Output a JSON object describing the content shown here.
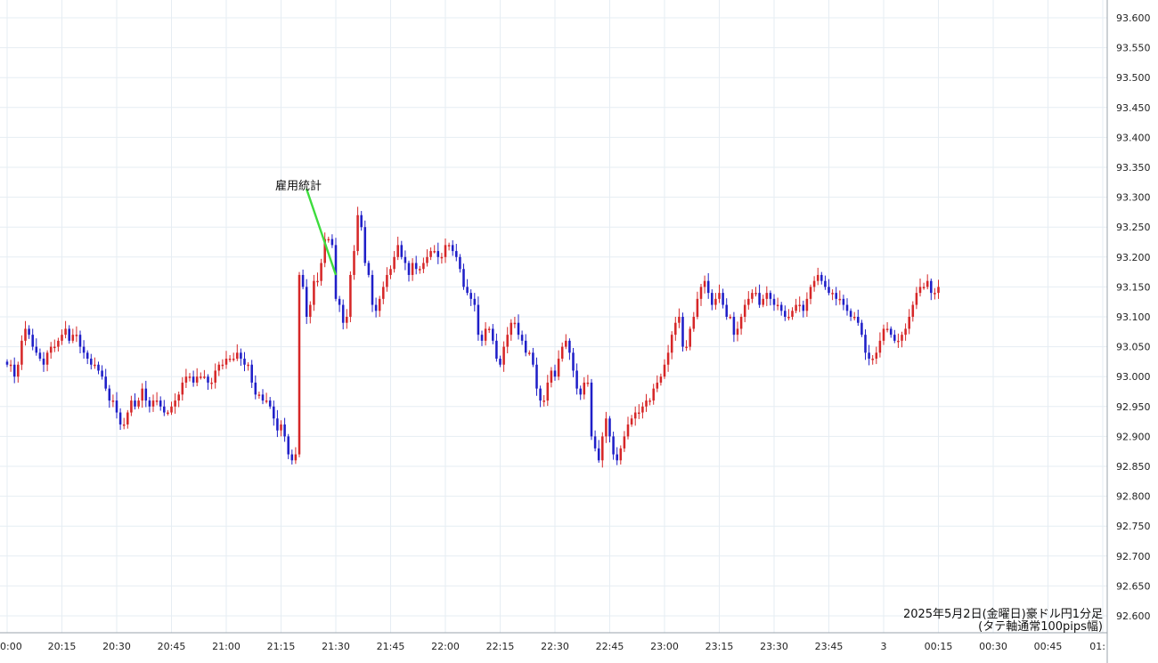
{
  "chart_data": {
    "type": "candlestick",
    "x_ticks": [
      "0:00",
      "20:15",
      "20:30",
      "20:45",
      "21:00",
      "21:15",
      "21:30",
      "21:45",
      "22:00",
      "22:15",
      "22:30",
      "22:45",
      "23:00",
      "23:15",
      "23:30",
      "23:45",
      "3",
      "00:15",
      "00:30",
      "00:45",
      "01:"
    ],
    "y_ticks": [
      "93.600",
      "93.550",
      "93.500",
      "93.450",
      "93.400",
      "93.350",
      "93.300",
      "93.250",
      "93.200",
      "93.150",
      "93.100",
      "93.050",
      "93.000",
      "92.950",
      "92.900",
      "92.850",
      "92.800",
      "92.750",
      "92.700",
      "92.650",
      "92.600"
    ],
    "ylim": [
      92.6,
      93.6
    ],
    "grid": true,
    "up_color": "#d62728",
    "down_color": "#1f1fc8",
    "annotation": {
      "text": "雇用統計",
      "at_time": "21:30",
      "line_color": "#3ddc3d"
    },
    "caption": [
      "2025年5月2日(金曜日)豪ドル円1分足",
      "(タテ軸通常100pips幅)"
    ],
    "series": [
      {
        "start_time": "20:00",
        "interval_minutes": 1,
        "close_path": [
          93.02,
          93.02,
          93.0,
          93.02,
          93.06,
          93.08,
          93.07,
          93.05,
          93.04,
          93.03,
          93.02,
          93.04,
          93.05,
          93.05,
          93.06,
          93.07,
          93.08,
          93.06,
          93.07,
          93.07,
          93.05,
          93.04,
          93.03,
          93.02,
          93.02,
          93.01,
          93.0,
          92.98,
          92.96,
          92.96,
          92.94,
          92.92,
          92.92,
          92.94,
          92.96,
          92.95,
          92.96,
          92.98,
          92.96,
          92.95,
          92.96,
          92.96,
          92.95,
          92.94,
          92.94,
          92.95,
          92.96,
          92.97,
          92.99,
          93.0,
          93.0,
          92.99,
          93.0,
          93.0,
          93.0,
          92.99,
          92.99,
          93.01,
          93.02,
          93.02,
          93.03,
          93.03,
          93.03,
          93.04,
          93.03,
          93.02,
          93.02,
          92.99,
          92.97,
          92.97,
          92.96,
          92.96,
          92.95,
          92.93,
          92.91,
          92.92,
          92.9,
          92.87,
          92.86,
          92.87,
          93.17,
          93.15,
          93.1,
          93.12,
          93.16,
          93.16,
          93.19,
          93.23,
          93.23,
          93.22,
          93.13,
          93.12,
          93.09,
          93.1,
          93.17,
          93.21,
          93.27,
          93.25,
          93.19,
          93.17,
          93.12,
          93.11,
          93.13,
          93.15,
          93.17,
          93.18,
          93.2,
          93.22,
          93.2,
          93.19,
          93.17,
          93.19,
          93.18,
          93.18,
          93.19,
          93.2,
          93.21,
          93.21,
          93.2,
          93.2,
          93.22,
          93.22,
          93.21,
          93.2,
          93.18,
          93.15,
          93.14,
          93.13,
          93.12,
          93.07,
          93.06,
          93.08,
          93.08,
          93.06,
          93.03,
          93.02,
          93.05,
          93.07,
          93.09,
          93.09,
          93.07,
          93.06,
          93.04,
          93.04,
          93.02,
          92.98,
          92.96,
          92.96,
          92.99,
          93.01,
          93.0,
          93.03,
          93.05,
          93.06,
          93.04,
          93.01,
          92.98,
          92.97,
          92.99,
          92.99,
          92.9,
          92.88,
          92.86,
          92.9,
          92.93,
          92.9,
          92.87,
          92.86,
          92.88,
          92.9,
          92.92,
          92.93,
          92.94,
          92.94,
          92.95,
          92.96,
          92.96,
          92.98,
          92.99,
          93.0,
          93.02,
          93.04,
          93.07,
          93.09,
          93.1,
          93.05,
          93.05,
          93.08,
          93.1,
          93.13,
          93.15,
          93.16,
          93.14,
          93.12,
          93.13,
          93.14,
          93.12,
          93.1,
          93.1,
          93.07,
          93.08,
          93.1,
          93.12,
          93.13,
          93.14,
          93.14,
          93.12,
          93.13,
          93.14,
          93.13,
          93.12,
          93.12,
          93.11,
          93.1,
          93.1,
          93.11,
          93.12,
          93.12,
          93.11,
          93.13,
          93.15,
          93.16,
          93.17,
          93.16,
          93.15,
          93.14,
          93.14,
          93.13,
          93.13,
          93.12,
          93.11,
          93.1,
          93.1,
          93.09,
          93.07,
          93.04,
          93.03,
          93.03,
          93.04,
          93.06,
          93.08,
          93.08,
          93.07,
          93.06,
          93.06,
          93.07,
          93.08,
          93.1,
          93.12,
          93.14,
          93.15,
          93.15,
          93.16,
          93.14,
          93.14,
          93.15
        ]
      }
    ]
  }
}
